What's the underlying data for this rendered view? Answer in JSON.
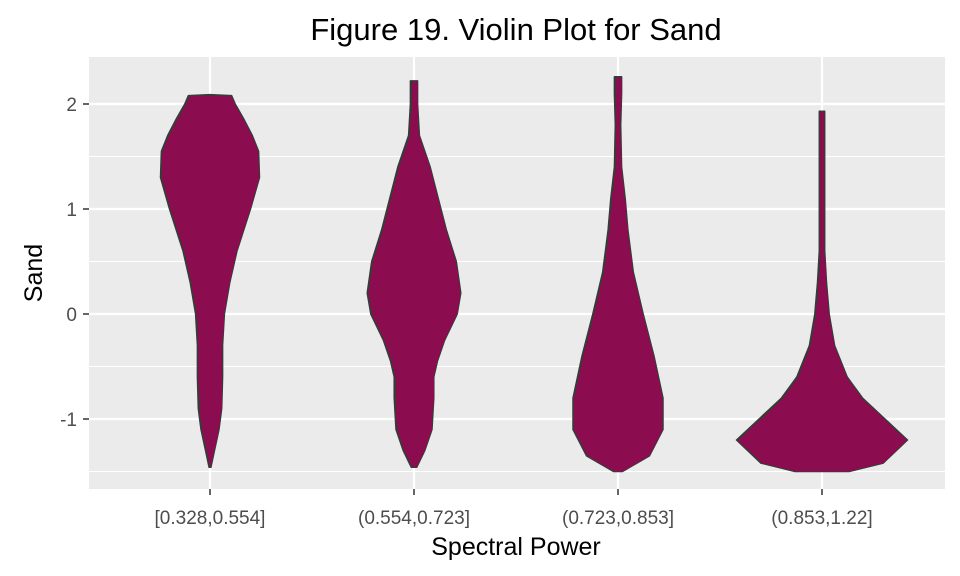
{
  "chart_data": {
    "type": "violin",
    "title": "Figure 19. Violin Plot for Sand",
    "xlabel": "Spectral Power",
    "ylabel": "Sand",
    "categories": [
      "[0.328,0.554]",
      "(0.554,0.723]",
      "(0.723,0.853]",
      "(0.853,1.22]"
    ],
    "ylim": [
      -1.65,
      2.45
    ],
    "yticks": [
      -1,
      0,
      1,
      2
    ],
    "yticklabels": [
      "-1",
      "0",
      "1",
      "2"
    ],
    "grid": true,
    "fill_color": "#8b0c4f",
    "outline_color": "#3a3a3a",
    "panel_background": "#ebebeb",
    "violins": [
      {
        "category": "[0.328,0.554]",
        "profile": [
          [
            -1.46,
            0.01
          ],
          [
            -1.3,
            0.05
          ],
          [
            -1.1,
            0.1
          ],
          [
            -0.9,
            0.13
          ],
          [
            -0.6,
            0.14
          ],
          [
            -0.3,
            0.14
          ],
          [
            0.0,
            0.16
          ],
          [
            0.3,
            0.22
          ],
          [
            0.6,
            0.3
          ],
          [
            1.0,
            0.45
          ],
          [
            1.3,
            0.55
          ],
          [
            1.55,
            0.54
          ],
          [
            1.7,
            0.47
          ],
          [
            1.85,
            0.38
          ],
          [
            2.0,
            0.28
          ],
          [
            2.08,
            0.24
          ],
          [
            2.09,
            0.0
          ]
        ]
      },
      {
        "category": "(0.554,0.723]",
        "profile": [
          [
            -1.46,
            0.03
          ],
          [
            -1.3,
            0.12
          ],
          [
            -1.1,
            0.2
          ],
          [
            -0.8,
            0.22
          ],
          [
            -0.6,
            0.22
          ],
          [
            -0.45,
            0.26
          ],
          [
            -0.25,
            0.34
          ],
          [
            0.0,
            0.48
          ],
          [
            0.2,
            0.52
          ],
          [
            0.5,
            0.47
          ],
          [
            0.8,
            0.36
          ],
          [
            1.1,
            0.27
          ],
          [
            1.4,
            0.18
          ],
          [
            1.7,
            0.06
          ],
          [
            2.0,
            0.04
          ],
          [
            2.22,
            0.04
          ]
        ]
      },
      {
        "category": "(0.723,0.853]",
        "profile": [
          [
            -1.5,
            0.05
          ],
          [
            -1.35,
            0.35
          ],
          [
            -1.1,
            0.5
          ],
          [
            -0.8,
            0.5
          ],
          [
            -0.4,
            0.4
          ],
          [
            0.0,
            0.28
          ],
          [
            0.4,
            0.17
          ],
          [
            0.8,
            0.11
          ],
          [
            1.1,
            0.08
          ],
          [
            1.4,
            0.04
          ],
          [
            1.8,
            0.03
          ],
          [
            2.1,
            0.04
          ],
          [
            2.26,
            0.04
          ]
        ]
      },
      {
        "category": "(0.853,1.22]",
        "profile": [
          [
            -1.5,
            0.3
          ],
          [
            -1.42,
            0.68
          ],
          [
            -1.2,
            0.95
          ],
          [
            -1.0,
            0.7
          ],
          [
            -0.8,
            0.45
          ],
          [
            -0.6,
            0.28
          ],
          [
            -0.3,
            0.14
          ],
          [
            0.0,
            0.08
          ],
          [
            0.3,
            0.05
          ],
          [
            0.6,
            0.03
          ],
          [
            1.0,
            0.03
          ],
          [
            1.5,
            0.03
          ],
          [
            1.93,
            0.03
          ]
        ]
      }
    ]
  }
}
